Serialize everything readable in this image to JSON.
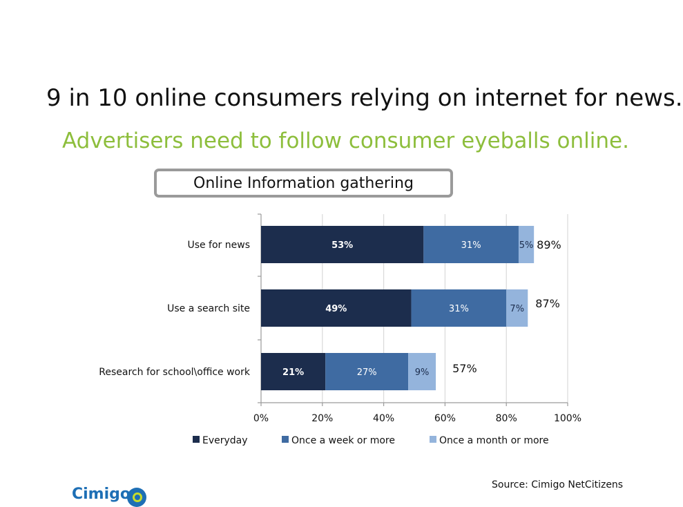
{
  "headline": "9 in 10 online consumers relying on internet for news.",
  "subheadline": "Advertisers need to follow consumer eyeballs online.",
  "source": "Source: Cimigo NetCitizens",
  "logo": {
    "text": "Cimigo"
  },
  "colors": {
    "everyday": "#1c2d4d",
    "weekly": "#3f6ba2",
    "monthly": "#94b4dc",
    "accent_green": "#8dbe3c",
    "grid": "#d9d9d9",
    "axis": "#9a9a9a"
  },
  "chart_data": {
    "type": "bar",
    "orientation": "horizontal",
    "stacked": true,
    "title": "Online Information gathering",
    "categories": [
      "Use for news",
      "Use a search site",
      "Research for school\\office work"
    ],
    "series": [
      {
        "name": "Everyday",
        "values": [
          53,
          49,
          21
        ],
        "labels": [
          "53%",
          "49%",
          "21%"
        ]
      },
      {
        "name": "Once a week or more",
        "values": [
          31,
          31,
          27
        ],
        "labels": [
          "31%",
          "31%",
          "27%"
        ]
      },
      {
        "name": "Once a month or more",
        "values": [
          5,
          7,
          9
        ],
        "labels": [
          "5%",
          "7%",
          "9%"
        ]
      }
    ],
    "totals": [
      89,
      87,
      57
    ],
    "total_labels": [
      "89%",
      "87%",
      "57%"
    ],
    "xlim": [
      0,
      100
    ],
    "xticks": [
      0,
      20,
      40,
      60,
      80,
      100
    ],
    "xtick_labels": [
      "0%",
      "20%",
      "40%",
      "60%",
      "80%",
      "100%"
    ],
    "grid": true,
    "legend_position": "bottom"
  }
}
